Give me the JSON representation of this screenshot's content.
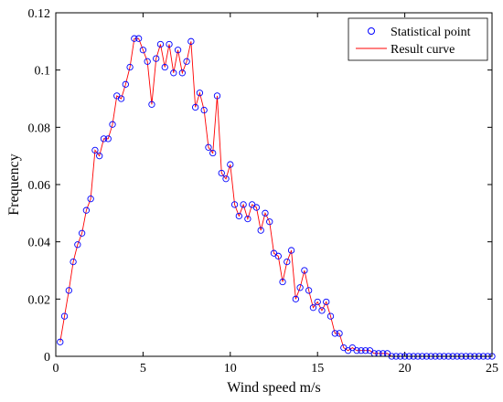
{
  "chart_data": {
    "type": "line",
    "xlabel": "Wind speed m/s",
    "ylabel": "Frequency",
    "xlim": [
      0,
      25
    ],
    "ylim": [
      0,
      0.12
    ],
    "x_ticks": [
      0,
      5,
      10,
      15,
      20,
      25
    ],
    "x_tick_labels": [
      "0",
      "5",
      "10",
      "15",
      "20",
      "25"
    ],
    "y_ticks": [
      0,
      0.02,
      0.04,
      0.06,
      0.08,
      0.1,
      0.12
    ],
    "y_tick_labels": [
      "0",
      "0.02",
      "0.04",
      "0.06",
      "0.08",
      "0.1",
      "0.12"
    ],
    "grid": false,
    "legend": {
      "position": "top-right"
    },
    "x": [
      0.25,
      0.5,
      0.75,
      1.0,
      1.25,
      1.5,
      1.75,
      2.0,
      2.25,
      2.5,
      2.75,
      3.0,
      3.25,
      3.5,
      3.75,
      4.0,
      4.25,
      4.5,
      4.75,
      5.0,
      5.25,
      5.5,
      5.75,
      6.0,
      6.25,
      6.5,
      6.75,
      7.0,
      7.25,
      7.5,
      7.75,
      8.0,
      8.25,
      8.5,
      8.75,
      9.0,
      9.25,
      9.5,
      9.75,
      10.0,
      10.25,
      10.5,
      10.75,
      11.0,
      11.25,
      11.5,
      11.75,
      12.0,
      12.25,
      12.5,
      12.75,
      13.0,
      13.25,
      13.5,
      13.75,
      14.0,
      14.25,
      14.5,
      14.75,
      15.0,
      15.25,
      15.5,
      15.75,
      16.0,
      16.25,
      16.5,
      16.75,
      17.0,
      17.25,
      17.5,
      17.75,
      18.0,
      18.25,
      18.5,
      18.75,
      19.0,
      19.25,
      19.5,
      19.75,
      20.0,
      20.25,
      20.5,
      20.75,
      21.0,
      21.25,
      21.5,
      21.75,
      22.0,
      22.25,
      22.5,
      22.75,
      23.0,
      23.25,
      23.5,
      23.75,
      24.0,
      24.25,
      24.5,
      24.75,
      25.0
    ],
    "series": [
      {
        "name": "Statistical point",
        "marker": "circle",
        "color": "#0000ff",
        "values": [
          0.005,
          0.014,
          0.023,
          0.033,
          0.039,
          0.043,
          0.051,
          0.055,
          0.072,
          0.07,
          0.076,
          0.076,
          0.081,
          0.091,
          0.09,
          0.095,
          0.101,
          0.111,
          0.111,
          0.107,
          0.103,
          0.088,
          0.104,
          0.109,
          0.101,
          0.109,
          0.099,
          0.107,
          0.099,
          0.103,
          0.11,
          0.087,
          0.092,
          0.086,
          0.073,
          0.071,
          0.091,
          0.064,
          0.062,
          0.067,
          0.053,
          0.049,
          0.053,
          0.048,
          0.053,
          0.052,
          0.044,
          0.05,
          0.047,
          0.036,
          0.035,
          0.026,
          0.033,
          0.037,
          0.02,
          0.024,
          0.03,
          0.023,
          0.017,
          0.019,
          0.016,
          0.019,
          0.014,
          0.008,
          0.008,
          0.003,
          0.002,
          0.003,
          0.002,
          0.002,
          0.002,
          0.002,
          0.001,
          0.001,
          0.001,
          0.001,
          0.0,
          0.0,
          0.0,
          0.0,
          0.0,
          0.0,
          0.0,
          0.0,
          0.0,
          0.0,
          0.0,
          0.0,
          0.0,
          0.0,
          0.0,
          0.0,
          0.0,
          0.0,
          0.0,
          0.0,
          0.0,
          0.0,
          0.0,
          0.0
        ]
      },
      {
        "name": "Result curve",
        "color": "#ff0000",
        "values": [
          0.005,
          0.014,
          0.023,
          0.033,
          0.039,
          0.043,
          0.051,
          0.055,
          0.072,
          0.07,
          0.076,
          0.076,
          0.081,
          0.091,
          0.09,
          0.095,
          0.101,
          0.111,
          0.111,
          0.107,
          0.103,
          0.088,
          0.104,
          0.109,
          0.101,
          0.109,
          0.099,
          0.107,
          0.099,
          0.103,
          0.11,
          0.087,
          0.092,
          0.086,
          0.073,
          0.071,
          0.091,
          0.064,
          0.062,
          0.067,
          0.053,
          0.049,
          0.053,
          0.048,
          0.053,
          0.052,
          0.044,
          0.05,
          0.047,
          0.036,
          0.035,
          0.026,
          0.033,
          0.037,
          0.02,
          0.024,
          0.03,
          0.023,
          0.017,
          0.019,
          0.016,
          0.019,
          0.014,
          0.008,
          0.008,
          0.003,
          0.002,
          0.003,
          0.002,
          0.002,
          0.002,
          0.002,
          0.001,
          0.001,
          0.001,
          0.001,
          0.0,
          0.0,
          0.0,
          0.0,
          0.0,
          0.0,
          0.0,
          0.0,
          0.0,
          0.0,
          0.0,
          0.0,
          0.0,
          0.0,
          0.0,
          0.0,
          0.0,
          0.0,
          0.0,
          0.0,
          0.0,
          0.0,
          0.0,
          0.0
        ]
      }
    ]
  }
}
